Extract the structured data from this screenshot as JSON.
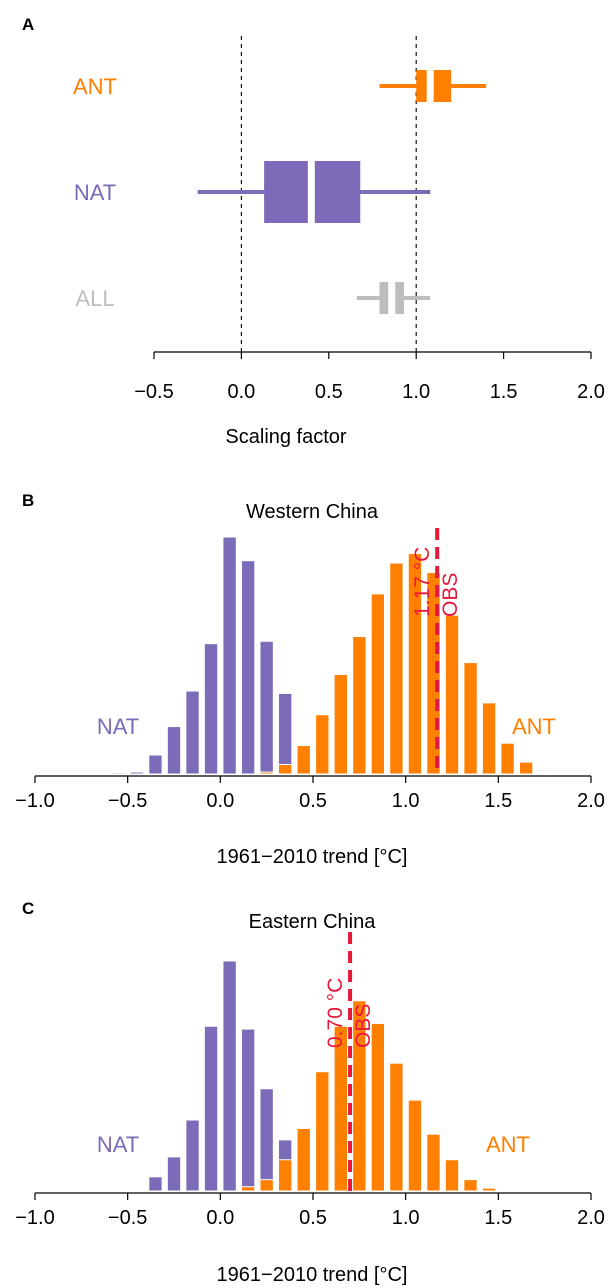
{
  "colors": {
    "ant": "#ff7f00",
    "nat": "#7b6bb8",
    "all": "#bdbdbd",
    "obs": "#e8183c",
    "axis": "#000000"
  },
  "chart_data": [
    {
      "panel": "A",
      "type": "box",
      "xlabel": "Scaling factor",
      "xlim": [
        -0.5,
        2.0
      ],
      "xticks": [
        "−0.5",
        "0.0",
        "0.5",
        "1.0",
        "1.5",
        "2.0"
      ],
      "reference_lines": [
        0.0,
        1.0
      ],
      "series": [
        {
          "name": "ANT",
          "whisker": [
            0.79,
            1.4
          ],
          "box": [
            1.0,
            1.2
          ],
          "median": 1.08
        },
        {
          "name": "NAT",
          "whisker": [
            -0.25,
            1.08
          ],
          "box": [
            0.13,
            0.68
          ],
          "median": 0.4
        },
        {
          "name": "ALL",
          "whisker": [
            0.66,
            1.08
          ],
          "box": [
            0.79,
            0.93
          ],
          "median": 0.86
        }
      ]
    },
    {
      "panel": "B",
      "type": "bar",
      "title": "Western China",
      "xlabel": "1961−2010 trend [°C]",
      "xlim": [
        -1.0,
        2.0
      ],
      "xticks": [
        "−1.0",
        "−0.5",
        "0.0",
        "0.5",
        "1.0",
        "1.5",
        "2.0"
      ],
      "bin_width": 0.1,
      "series": [
        {
          "name": "NAT",
          "x": [
            -0.55,
            -0.45,
            -0.35,
            -0.25,
            -0.15,
            -0.05,
            0.05,
            0.15,
            0.25,
            0.35,
            0.45,
            0.55
          ],
          "values": [
            0.5,
            0.8,
            8,
            20,
            35,
            55,
            100,
            90,
            56,
            34,
            12,
            1
          ]
        },
        {
          "name": "ANT",
          "x": [
            0.25,
            0.35,
            0.45,
            0.55,
            0.65,
            0.75,
            0.85,
            0.95,
            1.05,
            1.15,
            1.25,
            1.35,
            1.45,
            1.55,
            1.65
          ],
          "values": [
            0.8,
            4,
            12,
            25,
            42,
            58,
            76,
            89,
            93,
            85,
            67,
            47,
            30,
            13,
            5
          ]
        }
      ],
      "observed": {
        "value": 1.17,
        "label": "1.17 °C",
        "tag": "OBS"
      },
      "annotations": [
        "NAT",
        "ANT"
      ]
    },
    {
      "panel": "C",
      "type": "bar",
      "title": "Eastern China",
      "xlabel": "1961−2010 trend [°C]",
      "xlim": [
        -1.0,
        2.0
      ],
      "xticks": [
        "−1.0",
        "−0.5",
        "0.0",
        "0.5",
        "1.0",
        "1.5",
        "2.0"
      ],
      "bin_width": 0.1,
      "series": [
        {
          "name": "NAT",
          "x": [
            -0.35,
            -0.25,
            -0.15,
            -0.05,
            0.05,
            0.15,
            0.25,
            0.35,
            0.45,
            0.55
          ],
          "values": [
            5,
            12,
            25,
            58,
            81,
            57,
            36,
            18,
            11,
            3
          ]
        },
        {
          "name": "ANT",
          "x": [
            0.15,
            0.25,
            0.35,
            0.45,
            0.55,
            0.65,
            0.75,
            0.85,
            0.95,
            1.05,
            1.15,
            1.25,
            1.35,
            1.45
          ],
          "values": [
            1.5,
            4,
            11,
            22,
            42,
            58,
            67,
            59,
            45,
            32,
            20,
            11,
            4,
            1
          ]
        }
      ],
      "observed": {
        "value": 0.7,
        "label": "0.70 °C",
        "tag": "OBS"
      },
      "annotations": [
        "NAT",
        "ANT"
      ]
    }
  ],
  "panels": {
    "a": "A",
    "b": "B",
    "c": "C"
  }
}
